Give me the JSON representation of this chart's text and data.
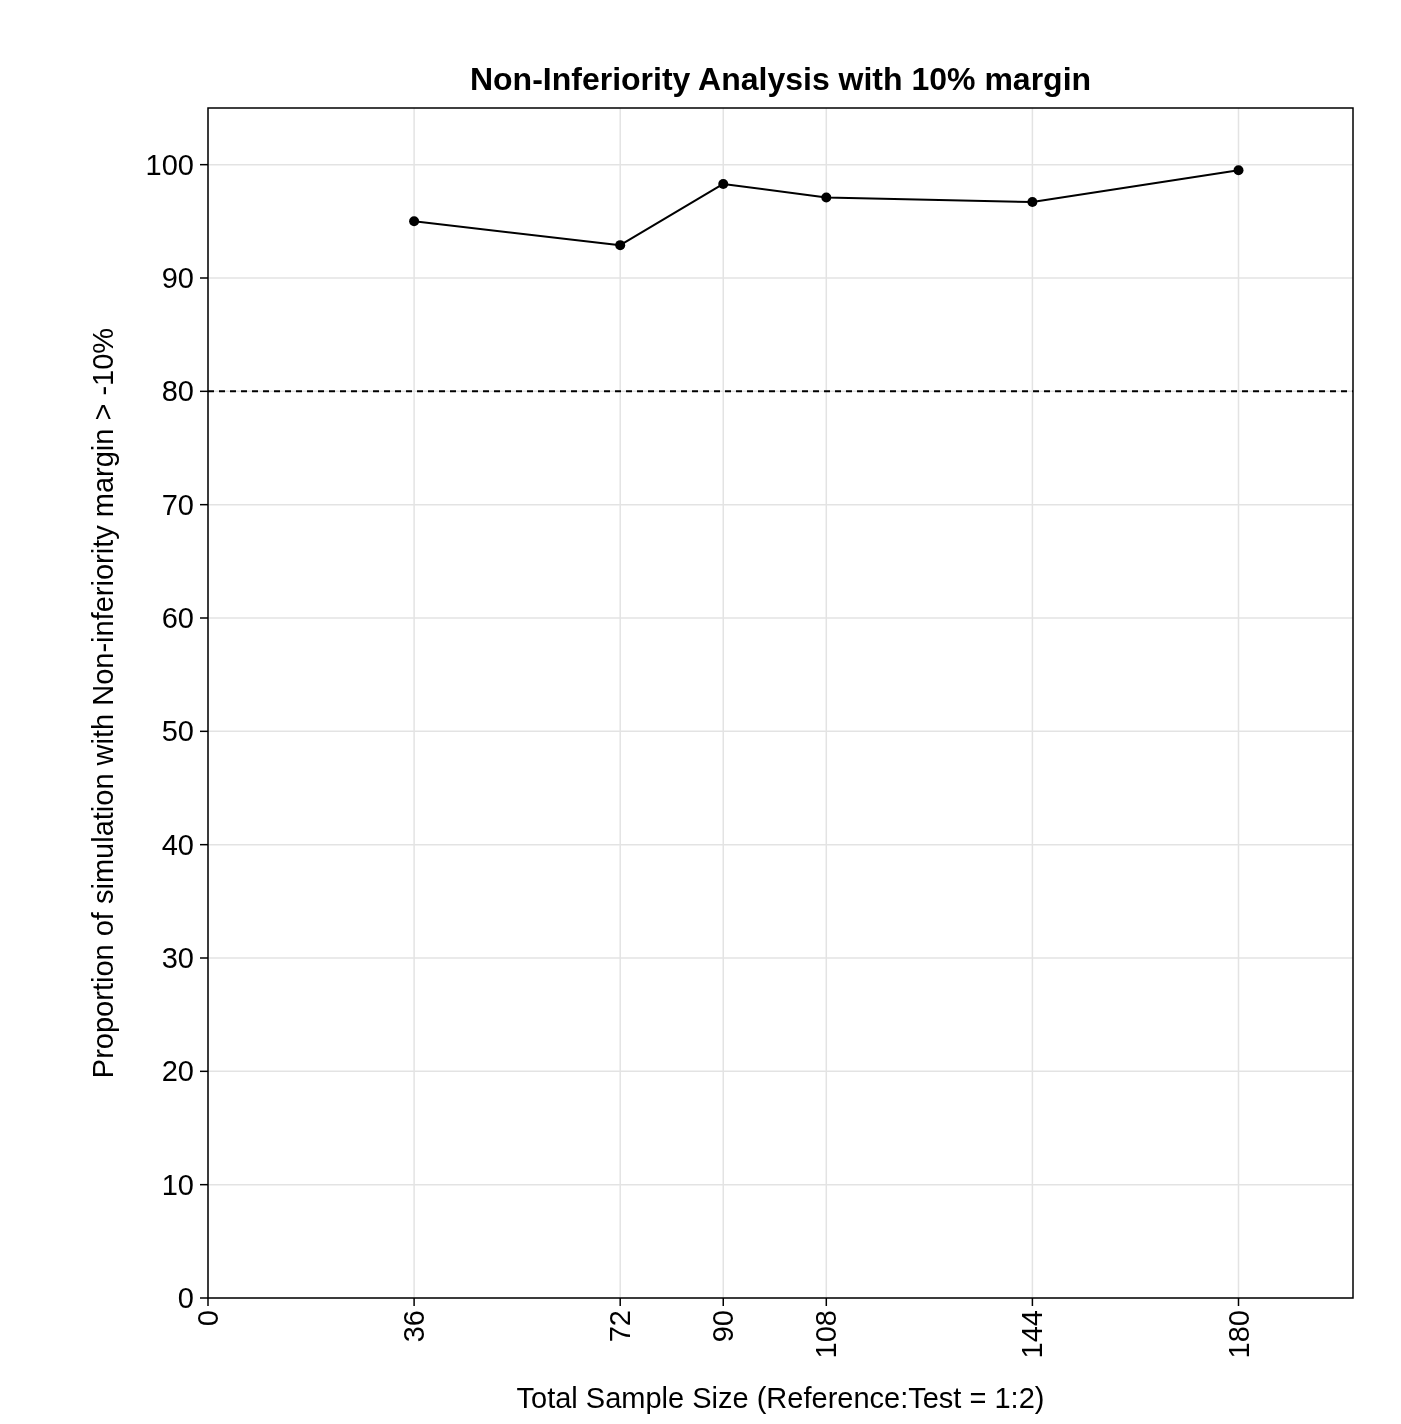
{
  "chart_data": {
    "type": "line",
    "title": "Non-Inferiority Analysis with 10% margin",
    "xlabel": "Total Sample Size (Reference:Test = 1:2)",
    "ylabel": "Proportion of simulation with Non-inferiority margin > -10%",
    "x": [
      36,
      72,
      90,
      108,
      144,
      180
    ],
    "series": [
      {
        "color": "#000000",
        "values": [
          95.0,
          92.9,
          98.3,
          97.1,
          96.7,
          99.5
        ]
      }
    ],
    "xlim": [
      0,
      200
    ],
    "xticks": [
      0,
      36,
      72,
      90,
      108,
      144,
      180
    ],
    "ylim": [
      0,
      105
    ],
    "yticks": [
      0,
      10,
      20,
      30,
      40,
      50,
      60,
      70,
      80,
      90,
      100
    ],
    "ref_lines": [
      {
        "axis": "y",
        "value": 80,
        "color": "#000000",
        "line_style": "dashed"
      }
    ],
    "grid": true,
    "marker": "circle",
    "line_style": "solid"
  }
}
